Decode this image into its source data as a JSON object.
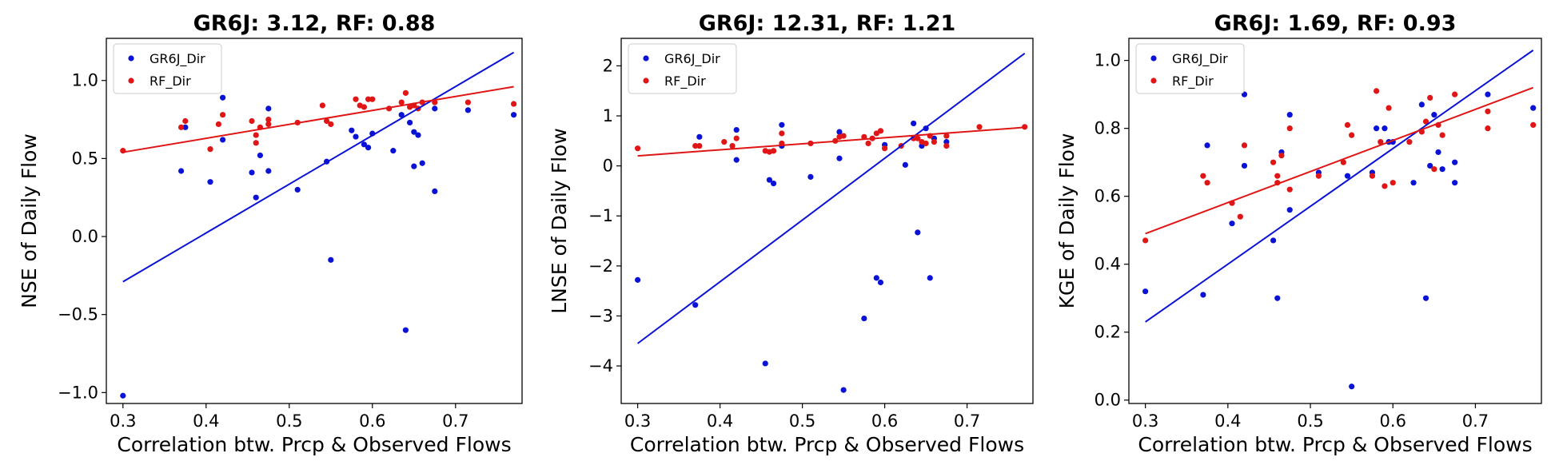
{
  "colors": {
    "gr6j": "#0a12d6",
    "rf": "#e01515"
  },
  "chart_data": [
    {
      "type": "scatter",
      "title": "GR6J: 3.12, RF: 0.88",
      "xlabel": "Correlation btw. Prcp & Observed Flows",
      "ylabel": "NSE of Daily Flow",
      "xlim": [
        0.28,
        0.78
      ],
      "ylim": [
        -1.07,
        1.27
      ],
      "xticks": [
        0.3,
        0.4,
        0.5,
        0.6,
        0.7
      ],
      "xtick_labels": [
        "0.3",
        "0.4",
        "0.5",
        "0.6",
        "0.7"
      ],
      "yticks": [
        -1.0,
        -0.5,
        0.0,
        0.5,
        1.0
      ],
      "ytick_labels": [
        "−1.0",
        "−0.5",
        "0.0",
        "0.5",
        "1.0"
      ],
      "legend": "upper-left",
      "series": [
        {
          "name": "GR6J_Dir",
          "color": "#0a12d6",
          "x": [
            0.3,
            0.37,
            0.375,
            0.405,
            0.42,
            0.42,
            0.455,
            0.46,
            0.465,
            0.475,
            0.475,
            0.51,
            0.545,
            0.55,
            0.575,
            0.58,
            0.59,
            0.595,
            0.6,
            0.625,
            0.635,
            0.64,
            0.645,
            0.65,
            0.65,
            0.655,
            0.66,
            0.675,
            0.675,
            0.715,
            0.77
          ],
          "y": [
            -1.02,
            0.42,
            0.7,
            0.35,
            0.62,
            0.89,
            0.41,
            0.25,
            0.52,
            0.42,
            0.82,
            0.3,
            0.48,
            -0.15,
            0.68,
            0.64,
            0.59,
            0.57,
            0.66,
            0.55,
            0.78,
            -0.6,
            0.73,
            0.45,
            0.67,
            0.65,
            0.47,
            0.29,
            0.82,
            0.81,
            0.78
          ],
          "fit": {
            "x": [
              0.3,
              0.77
            ],
            "y": [
              -0.29,
              1.18
            ]
          }
        },
        {
          "name": "RF_Dir",
          "color": "#e01515",
          "x": [
            0.3,
            0.37,
            0.375,
            0.405,
            0.415,
            0.42,
            0.455,
            0.46,
            0.46,
            0.465,
            0.475,
            0.475,
            0.51,
            0.54,
            0.545,
            0.55,
            0.58,
            0.585,
            0.59,
            0.595,
            0.6,
            0.62,
            0.635,
            0.64,
            0.645,
            0.65,
            0.655,
            0.66,
            0.675,
            0.715,
            0.77
          ],
          "y": [
            0.55,
            0.7,
            0.74,
            0.56,
            0.72,
            0.78,
            0.74,
            0.65,
            0.6,
            0.7,
            0.75,
            0.72,
            0.73,
            0.84,
            0.74,
            0.72,
            0.88,
            0.84,
            0.83,
            0.88,
            0.88,
            0.82,
            0.86,
            0.92,
            0.83,
            0.84,
            0.82,
            0.86,
            0.86,
            0.86,
            0.85
          ],
          "fit": {
            "x": [
              0.3,
              0.77
            ],
            "y": [
              0.54,
              0.96
            ]
          }
        }
      ]
    },
    {
      "type": "scatter",
      "title": "GR6J: 12.31, RF: 1.21",
      "xlabel": "Correlation btw. Prcp & Observed Flows",
      "ylabel": "LNSE of Daily Flow",
      "xlim": [
        0.28,
        0.78
      ],
      "ylim": [
        -4.75,
        2.55
      ],
      "xticks": [
        0.3,
        0.4,
        0.5,
        0.6,
        0.7
      ],
      "xtick_labels": [
        "0.3",
        "0.4",
        "0.5",
        "0.6",
        "0.7"
      ],
      "yticks": [
        -4,
        -3,
        -2,
        -1,
        0,
        1,
        2
      ],
      "ytick_labels": [
        "−4",
        "−3",
        "−2",
        "−1",
        "0",
        "1",
        "2"
      ],
      "legend": "upper-left",
      "series": [
        {
          "name": "GR6J_Dir",
          "color": "#0a12d6",
          "x": [
            0.3,
            0.37,
            0.375,
            0.42,
            0.42,
            0.455,
            0.46,
            0.465,
            0.475,
            0.475,
            0.51,
            0.545,
            0.545,
            0.55,
            0.575,
            0.59,
            0.595,
            0.6,
            0.625,
            0.635,
            0.64,
            0.645,
            0.65,
            0.655,
            0.66,
            0.675
          ],
          "y": [
            -2.28,
            -2.78,
            0.58,
            0.12,
            0.72,
            -3.95,
            -0.28,
            -0.35,
            0.82,
            0.4,
            -0.22,
            0.68,
            0.15,
            -4.48,
            -3.05,
            -2.24,
            -2.33,
            0.42,
            0.02,
            0.85,
            -1.33,
            0.4,
            0.75,
            -2.24,
            0.55,
            0.48
          ],
          "fit": {
            "x": [
              0.3,
              0.77
            ],
            "y": [
              -3.55,
              2.25
            ]
          }
        },
        {
          "name": "RF_Dir",
          "color": "#e01515",
          "x": [
            0.3,
            0.37,
            0.375,
            0.405,
            0.415,
            0.42,
            0.455,
            0.46,
            0.465,
            0.475,
            0.475,
            0.51,
            0.54,
            0.545,
            0.55,
            0.575,
            0.58,
            0.585,
            0.59,
            0.595,
            0.6,
            0.62,
            0.635,
            0.64,
            0.645,
            0.65,
            0.655,
            0.66,
            0.675,
            0.675,
            0.715,
            0.77
          ],
          "y": [
            0.35,
            0.4,
            0.4,
            0.48,
            0.4,
            0.55,
            0.3,
            0.28,
            0.3,
            0.45,
            0.65,
            0.45,
            0.5,
            0.58,
            0.6,
            0.58,
            0.45,
            0.55,
            0.65,
            0.7,
            0.35,
            0.4,
            0.55,
            0.55,
            0.48,
            0.45,
            0.6,
            0.48,
            0.6,
            0.4,
            0.78,
            0.78
          ],
          "fit": {
            "x": [
              0.3,
              0.77
            ],
            "y": [
              0.2,
              0.77
            ]
          }
        }
      ]
    },
    {
      "type": "scatter",
      "title": "GR6J: 1.69, RF: 0.93",
      "xlabel": "Correlation btw. Prcp & Observed Flows",
      "ylabel": "KGE of Daily Flow",
      "xlim": [
        0.28,
        0.78
      ],
      "ylim": [
        -0.01,
        1.065
      ],
      "xticks": [
        0.3,
        0.4,
        0.5,
        0.6,
        0.7
      ],
      "xtick_labels": [
        "0.3",
        "0.4",
        "0.5",
        "0.6",
        "0.7"
      ],
      "yticks": [
        0.0,
        0.2,
        0.4,
        0.6,
        0.8,
        1.0
      ],
      "ytick_labels": [
        "0.0",
        "0.2",
        "0.4",
        "0.6",
        "0.8",
        "1.0"
      ],
      "legend": "upper-left",
      "series": [
        {
          "name": "GR6J_Dir",
          "color": "#0a12d6",
          "x": [
            0.3,
            0.37,
            0.375,
            0.405,
            0.42,
            0.42,
            0.455,
            0.46,
            0.465,
            0.475,
            0.475,
            0.51,
            0.545,
            0.55,
            0.575,
            0.58,
            0.59,
            0.595,
            0.6,
            0.625,
            0.635,
            0.64,
            0.645,
            0.65,
            0.655,
            0.66,
            0.675,
            0.675,
            0.715,
            0.77
          ],
          "y": [
            0.32,
            0.31,
            0.75,
            0.52,
            0.69,
            0.9,
            0.47,
            0.3,
            0.73,
            0.56,
            0.84,
            0.67,
            0.66,
            0.04,
            0.67,
            0.8,
            0.8,
            0.76,
            0.76,
            0.64,
            0.87,
            0.3,
            0.69,
            0.84,
            0.73,
            0.68,
            0.64,
            0.7,
            0.9,
            0.86
          ],
          "fit": {
            "x": [
              0.3,
              0.77
            ],
            "y": [
              0.23,
              1.03
            ]
          }
        },
        {
          "name": "RF_Dir",
          "color": "#e01515",
          "x": [
            0.3,
            0.37,
            0.375,
            0.405,
            0.415,
            0.42,
            0.455,
            0.46,
            0.46,
            0.465,
            0.475,
            0.475,
            0.51,
            0.54,
            0.545,
            0.55,
            0.575,
            0.58,
            0.585,
            0.59,
            0.595,
            0.6,
            0.62,
            0.635,
            0.64,
            0.645,
            0.65,
            0.655,
            0.66,
            0.675,
            0.715,
            0.715,
            0.77
          ],
          "y": [
            0.47,
            0.66,
            0.64,
            0.58,
            0.54,
            0.75,
            0.7,
            0.64,
            0.66,
            0.72,
            0.8,
            0.62,
            0.66,
            0.7,
            0.81,
            0.78,
            0.66,
            0.91,
            0.76,
            0.63,
            0.86,
            0.64,
            0.76,
            0.79,
            0.82,
            0.89,
            0.68,
            0.81,
            0.78,
            0.9,
            0.8,
            0.85,
            0.81
          ],
          "fit": {
            "x": [
              0.3,
              0.77
            ],
            "y": [
              0.49,
              0.92
            ]
          }
        }
      ]
    }
  ]
}
